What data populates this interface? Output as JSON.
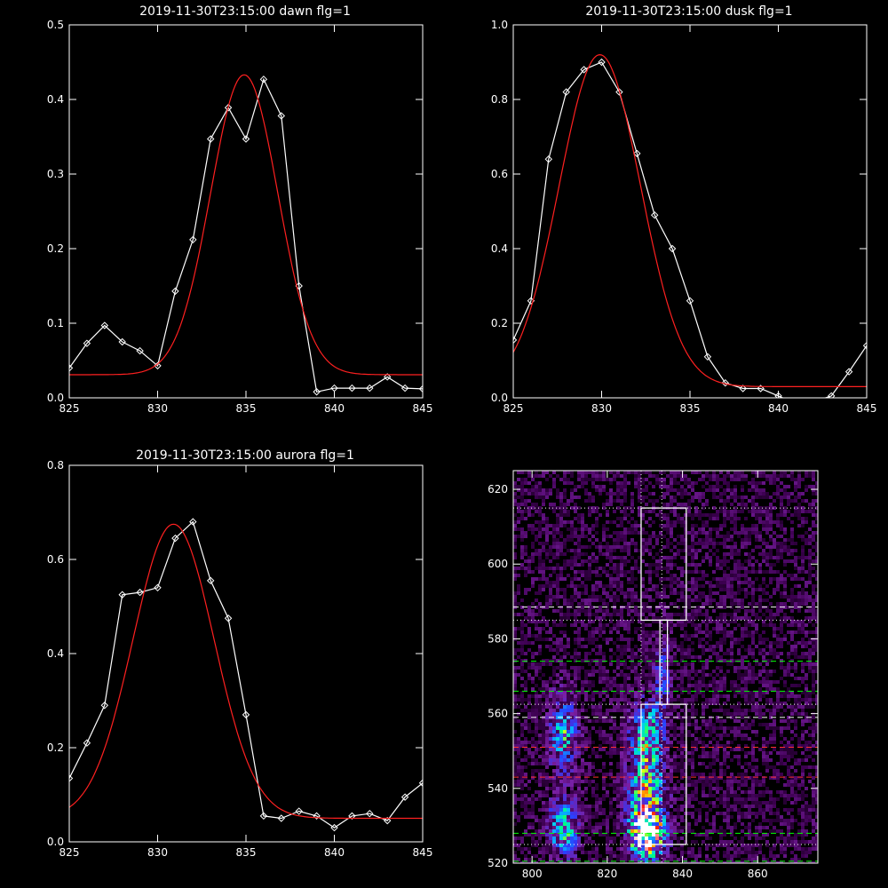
{
  "chart_data": [
    {
      "type": "line",
      "title": "2019-11-30T23:15:00 dawn flg=1",
      "xlim": [
        825,
        845
      ],
      "ylim": [
        0,
        0.5
      ],
      "xticks": [
        "825",
        "830",
        "835",
        "840",
        "845"
      ],
      "yticks": [
        "0.0",
        "0.1",
        "0.2",
        "0.3",
        "0.4",
        "0.5"
      ],
      "series": [
        {
          "color": "#ffffff",
          "marker": "diamond",
          "x": [
            825,
            826,
            827,
            828,
            829,
            830,
            831,
            832,
            833,
            834,
            835,
            836,
            837,
            838,
            839,
            840,
            841,
            842,
            843,
            844,
            845
          ],
          "y": [
            0.04,
            0.073,
            0.097,
            0.075,
            0.063,
            0.043,
            0.143,
            0.212,
            0.347,
            0.389,
            0.347,
            0.427,
            0.378,
            0.15,
            0.008,
            0.013,
            0.013,
            0.013,
            0.028,
            0.013,
            0.012
          ]
        },
        {
          "color": "#ff2020",
          "fit": "gaussian",
          "center": 834.9,
          "sigma": 1.9,
          "amplitude": 0.402,
          "baseline": 0.031
        }
      ]
    },
    {
      "type": "line",
      "title": "2019-11-30T23:15:00 dusk flg=1",
      "xlim": [
        825,
        845
      ],
      "ylim": [
        0,
        1.0
      ],
      "xticks": [
        "825",
        "830",
        "835",
        "840",
        "845"
      ],
      "yticks": [
        "0.0",
        "0.2",
        "0.4",
        "0.6",
        "0.8",
        "1.0"
      ],
      "series": [
        {
          "color": "#ffffff",
          "marker": "diamond",
          "x": [
            825,
            826,
            827,
            828,
            829,
            830,
            831,
            832,
            833,
            834,
            835,
            836,
            837,
            838,
            839,
            840,
            841,
            842,
            843,
            844,
            845
          ],
          "y": [
            0.155,
            0.26,
            0.64,
            0.82,
            0.88,
            0.9,
            0.82,
            0.655,
            0.49,
            0.4,
            0.26,
            0.11,
            0.04,
            0.025,
            0.025,
            0.005,
            -0.015,
            -0.01,
            0.005,
            0.07,
            0.14
          ]
        },
        {
          "color": "#ff2020",
          "fit": "gaussian",
          "center": 829.9,
          "sigma": 2.3,
          "amplitude": 0.89,
          "baseline": 0.03
        }
      ]
    },
    {
      "type": "line",
      "title": "2019-11-30T23:15:00 aurora flg=1",
      "xlim": [
        825,
        845
      ],
      "ylim": [
        0,
        0.8
      ],
      "xticks": [
        "825",
        "830",
        "835",
        "840",
        "845"
      ],
      "yticks": [
        "0.0",
        "0.2",
        "0.4",
        "0.6",
        "0.8"
      ],
      "series": [
        {
          "color": "#ffffff",
          "marker": "diamond",
          "x": [
            825,
            826,
            827,
            828,
            829,
            830,
            831,
            832,
            833,
            834,
            835,
            836,
            837,
            838,
            839,
            840,
            841,
            842,
            843,
            844,
            845
          ],
          "y": [
            0.135,
            0.21,
            0.29,
            0.525,
            0.53,
            0.54,
            0.645,
            0.68,
            0.555,
            0.475,
            0.27,
            0.055,
            0.05,
            0.065,
            0.055,
            0.03,
            0.055,
            0.06,
            0.045,
            0.095,
            0.125
          ]
        },
        {
          "color": "#ff2020",
          "fit": "gaussian",
          "center": 830.9,
          "sigma": 2.3,
          "amplitude": 0.625,
          "baseline": 0.05
        }
      ]
    },
    {
      "type": "heatmap",
      "title": "",
      "xlim": [
        795,
        876
      ],
      "ylim": [
        520,
        625
      ],
      "xticks": [
        "800",
        "820",
        "840",
        "860"
      ],
      "yticks": [
        "520",
        "540",
        "560",
        "580",
        "600",
        "620"
      ],
      "colormap": [
        "#000000",
        "#3c0050",
        "#7a1fa2",
        "#2a3cff",
        "#00c8ff",
        "#00ff80",
        "#ffff00",
        "#ff0000",
        "#ffffff"
      ],
      "hot_spots": [
        {
          "x": 830,
          "y": 528,
          "value": 1.0,
          "sx": 3,
          "sy": 4
        },
        {
          "x": 830,
          "y": 538,
          "value": 0.7,
          "sx": 3,
          "sy": 8
        },
        {
          "x": 830,
          "y": 555,
          "value": 0.45,
          "sx": 3,
          "sy": 6
        },
        {
          "x": 808,
          "y": 530,
          "value": 0.55,
          "sx": 2.5,
          "sy": 5
        },
        {
          "x": 808,
          "y": 555,
          "value": 0.45,
          "sx": 2.5,
          "sy": 7
        },
        {
          "x": 834,
          "y": 570,
          "value": 0.3,
          "sx": 1.5,
          "sy": 8
        }
      ],
      "vertical_dotted_x": [
        829,
        834.5
      ],
      "box_regions": [
        {
          "name": "upper box",
          "x0": 829,
          "x1": 841,
          "y0": 585,
          "y1": 615
        },
        {
          "name": "middle slit",
          "x0": 834,
          "x1": 836,
          "y0": 562.5,
          "y1": 585
        },
        {
          "name": "lower box",
          "x0": 829,
          "x1": 841,
          "y0": 525,
          "y1": 562.5
        }
      ],
      "horizontal_lines": [
        {
          "y": 615,
          "color": "#ffffff",
          "style": "dotted"
        },
        {
          "y": 588.5,
          "color": "#ffffff",
          "style": "dashed"
        },
        {
          "y": 585,
          "color": "#ffffff",
          "style": "dotted"
        },
        {
          "y": 574,
          "color": "#00ff00",
          "style": "dashed"
        },
        {
          "y": 566,
          "color": "#00ff00",
          "style": "dashed"
        },
        {
          "y": 562.5,
          "color": "#ffffff",
          "style": "dotted"
        },
        {
          "y": 559,
          "color": "#ffffff",
          "style": "dashed"
        },
        {
          "y": 551,
          "color": "#ff3030",
          "style": "dashed"
        },
        {
          "y": 543,
          "color": "#ff3030",
          "style": "dashed"
        },
        {
          "y": 528,
          "color": "#00ff00",
          "style": "dashed"
        },
        {
          "y": 525,
          "color": "#ffffff",
          "style": "dotted"
        },
        {
          "y": 520.5,
          "color": "#00ff00",
          "style": "dashed"
        }
      ]
    }
  ]
}
